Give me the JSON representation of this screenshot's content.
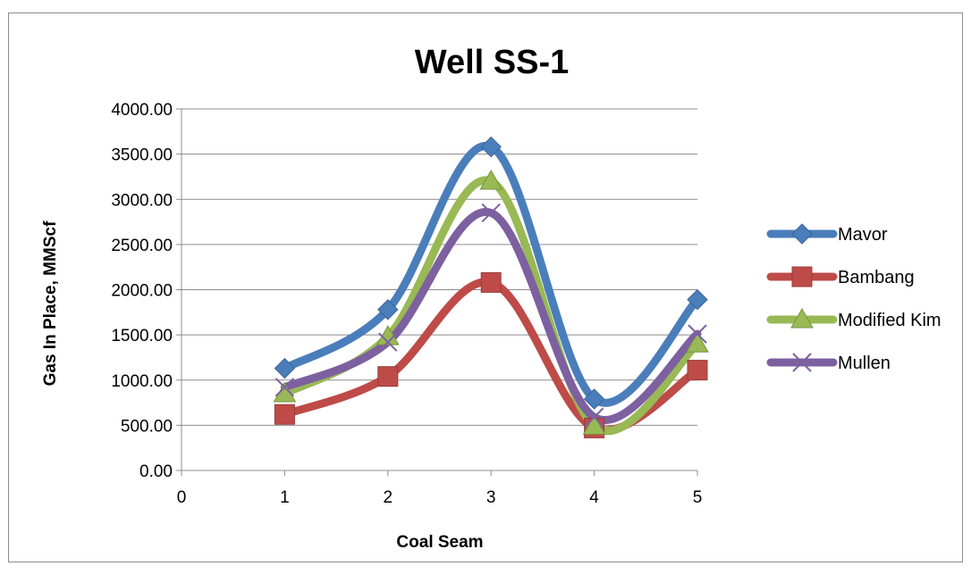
{
  "chart_data": {
    "type": "line",
    "title": "Well SS-1",
    "xlabel": "Coal Seam",
    "ylabel": "Gas In Place, MMScf",
    "x": [
      1,
      2,
      3,
      4,
      5
    ],
    "xlim": [
      0,
      5
    ],
    "x_ticks": [
      "0",
      "1",
      "2",
      "3",
      "4",
      "5"
    ],
    "ylim": [
      0,
      4000
    ],
    "y_ticks": [
      "0.00",
      "500.00",
      "1000.00",
      "1500.00",
      "2000.00",
      "2500.00",
      "3000.00",
      "3500.00",
      "4000.00"
    ],
    "grid": "horizontal",
    "smooth": true,
    "legend_position": "right",
    "series": [
      {
        "name": "Mavor",
        "values": [
          1130,
          1780,
          3580,
          790,
          1890
        ],
        "color": "#4a7ebb",
        "marker": "diamond"
      },
      {
        "name": "Bambang",
        "values": [
          620,
          1040,
          2080,
          470,
          1110
        ],
        "color": "#be4b48",
        "marker": "square"
      },
      {
        "name": "Modified Kim",
        "values": [
          850,
          1480,
          3200,
          490,
          1400
        ],
        "color": "#98b954",
        "marker": "triangle"
      },
      {
        "name": "Mullen",
        "values": [
          920,
          1420,
          2850,
          590,
          1510
        ],
        "color": "#7d60a0",
        "marker": "x"
      }
    ]
  }
}
